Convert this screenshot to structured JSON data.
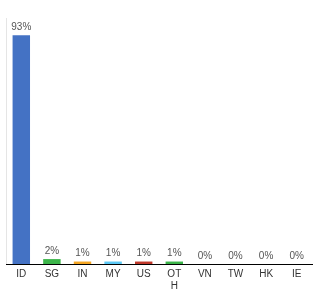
{
  "chart_data": {
    "type": "bar",
    "categories": [
      "ID",
      "SG",
      "IN",
      "MY",
      "US",
      "OT\nH",
      "VN",
      "TW",
      "HK",
      "IE"
    ],
    "values": [
      93,
      2,
      1,
      1,
      1,
      1,
      0,
      0,
      0,
      0
    ],
    "value_labels": [
      "93%",
      "2%",
      "1%",
      "1%",
      "1%",
      "1%",
      "0%",
      "0%",
      "0%",
      "0%"
    ],
    "colors": [
      "#4472C4",
      "#3CB54A",
      "#F5A623",
      "#5BC8F5",
      "#C0392B",
      "#3CB54A",
      "#999999",
      "#999999",
      "#999999",
      "#999999"
    ],
    "ylim": [
      0,
      100
    ],
    "grid": false,
    "data_labels": true,
    "tick_labels": "x"
  }
}
